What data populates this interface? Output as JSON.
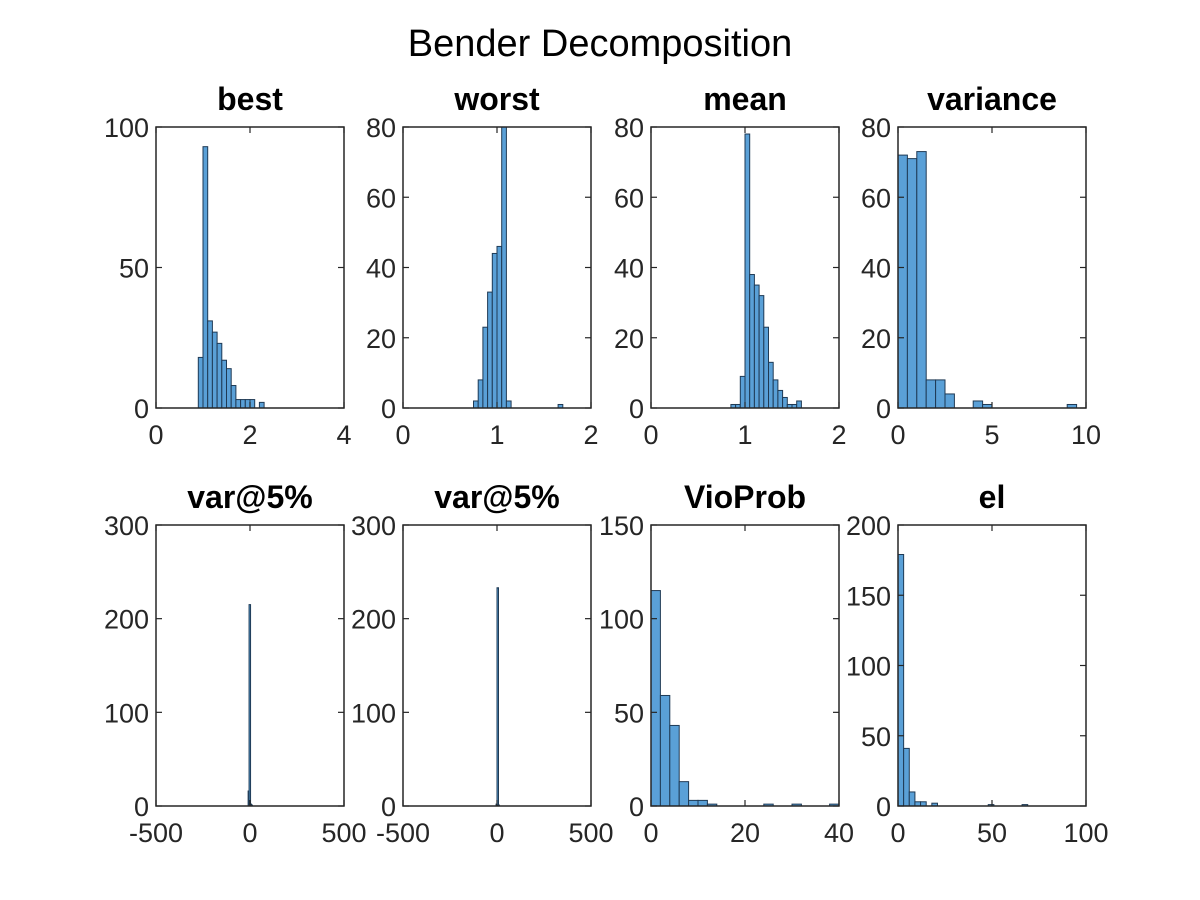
{
  "figure": {
    "title": "Bender Decomposition"
  },
  "colors": {
    "bar_fill": "#5aa0d7",
    "bar_edge": "#1f3a55",
    "axis": "#262626"
  },
  "chart_data": [
    {
      "type": "bar",
      "title": "best",
      "xlim": [
        0,
        4
      ],
      "ylim": [
        0,
        100
      ],
      "xticks": [
        0,
        2,
        4
      ],
      "yticks": [
        0,
        50,
        100
      ],
      "grid": false,
      "bins": [
        {
          "x0": 0.9,
          "x1": 1.0,
          "count": 18
        },
        {
          "x0": 1.0,
          "x1": 1.1,
          "count": 93
        },
        {
          "x0": 1.1,
          "x1": 1.2,
          "count": 31
        },
        {
          "x0": 1.2,
          "x1": 1.3,
          "count": 27
        },
        {
          "x0": 1.3,
          "x1": 1.4,
          "count": 23
        },
        {
          "x0": 1.4,
          "x1": 1.5,
          "count": 17
        },
        {
          "x0": 1.5,
          "x1": 1.6,
          "count": 14
        },
        {
          "x0": 1.6,
          "x1": 1.7,
          "count": 8
        },
        {
          "x0": 1.7,
          "x1": 1.8,
          "count": 3
        },
        {
          "x0": 1.8,
          "x1": 1.9,
          "count": 3
        },
        {
          "x0": 1.9,
          "x1": 2.0,
          "count": 3
        },
        {
          "x0": 2.0,
          "x1": 2.1,
          "count": 3
        },
        {
          "x0": 2.1,
          "x1": 2.2,
          "count": 0
        },
        {
          "x0": 2.2,
          "x1": 2.3,
          "count": 2
        }
      ]
    },
    {
      "type": "bar",
      "title": "worst",
      "xlim": [
        0,
        2
      ],
      "ylim": [
        0,
        80
      ],
      "xticks": [
        0,
        1,
        2
      ],
      "yticks": [
        0,
        20,
        40,
        60,
        80
      ],
      "grid": false,
      "bins": [
        {
          "x0": 0.75,
          "x1": 0.8,
          "count": 2
        },
        {
          "x0": 0.8,
          "x1": 0.85,
          "count": 8
        },
        {
          "x0": 0.85,
          "x1": 0.9,
          "count": 23
        },
        {
          "x0": 0.9,
          "x1": 0.95,
          "count": 33
        },
        {
          "x0": 0.95,
          "x1": 1.0,
          "count": 44
        },
        {
          "x0": 1.0,
          "x1": 1.05,
          "count": 46
        },
        {
          "x0": 1.05,
          "x1": 1.1,
          "count": 80
        },
        {
          "x0": 1.1,
          "x1": 1.15,
          "count": 2
        },
        {
          "x0": 1.65,
          "x1": 1.7,
          "count": 1
        }
      ]
    },
    {
      "type": "bar",
      "title": "mean",
      "xlim": [
        0,
        2
      ],
      "ylim": [
        0,
        80
      ],
      "xticks": [
        0,
        1,
        2
      ],
      "yticks": [
        0,
        20,
        40,
        60,
        80
      ],
      "grid": false,
      "bins": [
        {
          "x0": 0.85,
          "x1": 0.9,
          "count": 1
        },
        {
          "x0": 0.9,
          "x1": 0.95,
          "count": 1
        },
        {
          "x0": 0.95,
          "x1": 1.0,
          "count": 9
        },
        {
          "x0": 1.0,
          "x1": 1.05,
          "count": 78
        },
        {
          "x0": 1.05,
          "x1": 1.1,
          "count": 38
        },
        {
          "x0": 1.1,
          "x1": 1.15,
          "count": 35
        },
        {
          "x0": 1.15,
          "x1": 1.2,
          "count": 32
        },
        {
          "x0": 1.2,
          "x1": 1.25,
          "count": 23
        },
        {
          "x0": 1.25,
          "x1": 1.3,
          "count": 13
        },
        {
          "x0": 1.3,
          "x1": 1.35,
          "count": 8
        },
        {
          "x0": 1.35,
          "x1": 1.4,
          "count": 5
        },
        {
          "x0": 1.4,
          "x1": 1.45,
          "count": 3
        },
        {
          "x0": 1.45,
          "x1": 1.5,
          "count": 1
        },
        {
          "x0": 1.5,
          "x1": 1.55,
          "count": 1
        },
        {
          "x0": 1.55,
          "x1": 1.6,
          "count": 2
        }
      ]
    },
    {
      "type": "bar",
      "title": "variance",
      "xlim": [
        0,
        10
      ],
      "ylim": [
        0,
        80
      ],
      "xticks": [
        0,
        5,
        10
      ],
      "yticks": [
        0,
        20,
        40,
        60,
        80
      ],
      "grid": false,
      "bins": [
        {
          "x0": 0.0,
          "x1": 0.5,
          "count": 72
        },
        {
          "x0": 0.5,
          "x1": 1.0,
          "count": 71
        },
        {
          "x0": 1.0,
          "x1": 1.5,
          "count": 73
        },
        {
          "x0": 1.5,
          "x1": 2.0,
          "count": 8
        },
        {
          "x0": 2.0,
          "x1": 2.5,
          "count": 8
        },
        {
          "x0": 2.5,
          "x1": 3.0,
          "count": 4
        },
        {
          "x0": 4.0,
          "x1": 4.5,
          "count": 2
        },
        {
          "x0": 4.5,
          "x1": 5.0,
          "count": 1
        },
        {
          "x0": 9.0,
          "x1": 9.5,
          "count": 1
        }
      ]
    },
    {
      "type": "bar",
      "title": "var@5%",
      "xlim": [
        -500,
        500
      ],
      "ylim": [
        0,
        300
      ],
      "xticks": [
        -500,
        0,
        500
      ],
      "yticks": [
        0,
        100,
        200,
        300
      ],
      "grid": false,
      "bins": [
        {
          "x0": -10,
          "x1": -5,
          "count": 16
        },
        {
          "x0": -5,
          "x1": 0,
          "count": 215
        },
        {
          "x0": 0,
          "x1": 5,
          "count": 2
        },
        {
          "x0": 5,
          "x1": 10,
          "count": 1
        }
      ]
    },
    {
      "type": "bar",
      "title": "var@5%",
      "xlim": [
        -500,
        500
      ],
      "ylim": [
        0,
        300
      ],
      "xticks": [
        -500,
        0,
        500
      ],
      "yticks": [
        0,
        100,
        200,
        300
      ],
      "grid": false,
      "bins": [
        {
          "x0": -5,
          "x1": 0,
          "count": 2
        },
        {
          "x0": 0,
          "x1": 5,
          "count": 233
        },
        {
          "x0": 5,
          "x1": 10,
          "count": 1
        }
      ]
    },
    {
      "type": "bar",
      "title": "VioProb",
      "xlim": [
        0,
        40
      ],
      "ylim": [
        0,
        150
      ],
      "xticks": [
        0,
        20,
        40
      ],
      "yticks": [
        0,
        50,
        100,
        150
      ],
      "grid": false,
      "bins": [
        {
          "x0": 0,
          "x1": 2,
          "count": 115
        },
        {
          "x0": 2,
          "x1": 4,
          "count": 59
        },
        {
          "x0": 4,
          "x1": 6,
          "count": 43
        },
        {
          "x0": 6,
          "x1": 8,
          "count": 13
        },
        {
          "x0": 8,
          "x1": 10,
          "count": 3
        },
        {
          "x0": 10,
          "x1": 12,
          "count": 3
        },
        {
          "x0": 12,
          "x1": 14,
          "count": 1
        },
        {
          "x0": 24,
          "x1": 26,
          "count": 1
        },
        {
          "x0": 30,
          "x1": 32,
          "count": 1
        },
        {
          "x0": 38,
          "x1": 40,
          "count": 1
        }
      ]
    },
    {
      "type": "bar",
      "title": "el",
      "xlim": [
        0,
        100
      ],
      "ylim": [
        0,
        200
      ],
      "xticks": [
        0,
        50,
        100
      ],
      "yticks": [
        0,
        50,
        100,
        150,
        200
      ],
      "grid": false,
      "bins": [
        {
          "x0": 0,
          "x1": 3,
          "count": 179
        },
        {
          "x0": 3,
          "x1": 6,
          "count": 41
        },
        {
          "x0": 6,
          "x1": 9,
          "count": 10
        },
        {
          "x0": 9,
          "x1": 12,
          "count": 3
        },
        {
          "x0": 12,
          "x1": 15,
          "count": 3
        },
        {
          "x0": 18,
          "x1": 21,
          "count": 2
        },
        {
          "x0": 48,
          "x1": 51,
          "count": 1
        },
        {
          "x0": 66,
          "x1": 69,
          "count": 1
        }
      ]
    }
  ]
}
